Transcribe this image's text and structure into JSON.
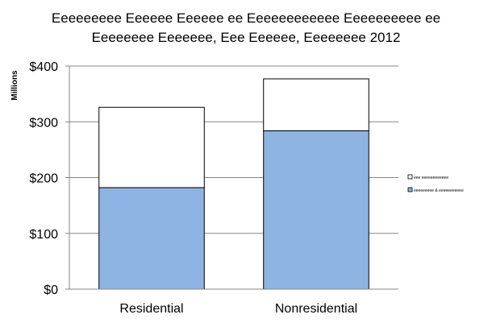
{
  "chart_data": {
    "type": "bar",
    "stacked": true,
    "title_lines": [
      "Eeeeeeeee Eeeeee Eeeeee ee Eeeeeeeeeeee Eeeeeeeeee ee",
      "Eeeeeeee Eeeeeee, Eee Eeeeee, Eeeeeeee 2012"
    ],
    "ylabel": "Millions",
    "xlabel": "",
    "categories": [
      "Residential",
      "Nonresidential"
    ],
    "series": [
      {
        "name": "eeeeeeeee & eeeeeeeeeee",
        "values": [
          182,
          284
        ],
        "color": "#8eb4e3"
      },
      {
        "name": "eee eeeeeeeeeeee",
        "values": [
          144,
          93
        ],
        "color": "#ffffff"
      }
    ],
    "ylim": [
      0,
      400
    ],
    "yticks": [
      {
        "value": 0,
        "label": "$0"
      },
      {
        "value": 100,
        "label": "$100"
      },
      {
        "value": 200,
        "label": "$200"
      },
      {
        "value": 300,
        "label": "$300"
      },
      {
        "value": 400,
        "label": "$400"
      }
    ],
    "grid": true,
    "legend_position": "right"
  }
}
